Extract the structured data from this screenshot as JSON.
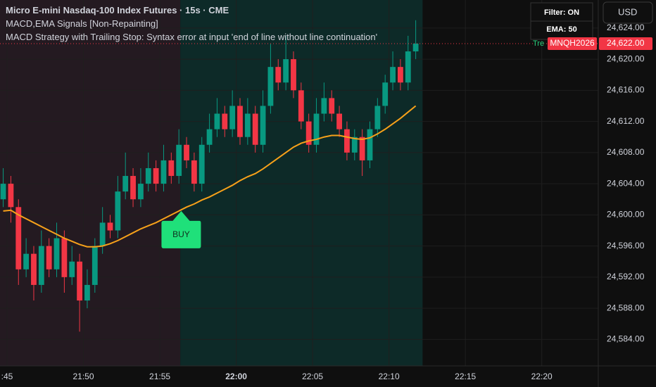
{
  "chart_data": {
    "type": "candlestick",
    "title": "Micro E-mini Nasdaq-100 Index Futures · 15s · CME",
    "indicators": [
      "MACD,EMA Signals [Non-Repainting]",
      "MACD Strategy with Trailing Stop: Syntax error at input 'end of line without line continuation'"
    ],
    "table": [
      "Filter: ON",
      "EMA: 50"
    ],
    "currency": "USD",
    "trend_label": "Tre",
    "symbol": "MNQH2026",
    "last_price": {
      "value": 24622,
      "label": "24,622.00"
    },
    "x": [
      44.75,
      45.25,
      45.75,
      46.25,
      46.75,
      47.25,
      47.75,
      48.25,
      48.75,
      49.25,
      49.75,
      50.25,
      50.75,
      51.25,
      51.75,
      52.25,
      52.75,
      53.25,
      53.75,
      54.25,
      54.75,
      55.25,
      55.75,
      56.25,
      56.75,
      57.25,
      57.75,
      58.25,
      58.75,
      59.25,
      59.75,
      60.25,
      60.75,
      61.25,
      61.75,
      62.25,
      62.75,
      63.25,
      63.75,
      64.25,
      64.75,
      65.25,
      65.75,
      66.25,
      66.75,
      67.25,
      67.75,
      68.25,
      68.75,
      69.25,
      69.75,
      70.25,
      70.75,
      71.25,
      71.75
    ],
    "open": [
      24602,
      24604,
      24601,
      24593,
      24595,
      24591,
      24596,
      24593,
      24597,
      24592,
      24594,
      24589,
      24591,
      24596,
      24599,
      24598,
      24603,
      24605,
      24602,
      24604,
      24606,
      24604,
      24607,
      24605,
      24609,
      24607,
      24604,
      24609,
      24611,
      24613,
      24611,
      24614,
      24610,
      24613,
      24609,
      24614,
      24619,
      24617,
      24620,
      24616,
      24612,
      24609,
      24613,
      24615,
      24613,
      24611,
      24608,
      24610,
      24607,
      24611,
      24614,
      24617,
      24619,
      24617,
      24621
    ],
    "high": [
      24606,
      24605,
      24602,
      24597,
      24596,
      24598,
      24597,
      24599,
      24598,
      24596,
      24595,
      24593,
      24597,
      24601,
      24600,
      24605,
      24608,
      24606,
      24606,
      24608,
      24607,
      24609,
      24608,
      24611,
      24610,
      24608,
      24610,
      24613,
      24615,
      24614,
      24616,
      24615,
      24615,
      24614,
      24616,
      24622,
      24620,
      24623,
      24621,
      24617,
      24613,
      24615,
      24617,
      24616,
      24614,
      24612,
      24611,
      24611,
      24612,
      24615,
      24618,
      24621,
      24620,
      24623,
      24625
    ],
    "low": [
      24601,
      24599,
      24591,
      24592,
      24589,
      24590,
      24592,
      24592,
      24590,
      24591,
      24585,
      24588,
      24590,
      24595,
      24597,
      24597,
      24602,
      24601,
      24601,
      24603,
      24603,
      24603,
      24604,
      24604,
      24606,
      24603,
      24603,
      24608,
      24610,
      24610,
      24610,
      24609,
      24609,
      24608,
      24608,
      24613,
      24616,
      24616,
      24615,
      24611,
      24608,
      24608,
      24612,
      24612,
      24610,
      24607,
      24607,
      24605,
      24606,
      24610,
      24613,
      24616,
      24616,
      24616,
      24620
    ],
    "close": [
      24604,
      24601,
      24593,
      24595,
      24591,
      24596,
      24593,
      24597,
      24592,
      24594,
      24589,
      24591,
      24596,
      24599,
      24598,
      24603,
      24605,
      24602,
      24604,
      24606,
      24604,
      24607,
      24605,
      24609,
      24607,
      24604,
      24609,
      24611,
      24613,
      24611,
      24614,
      24610,
      24613,
      24609,
      24614,
      24619,
      24617,
      24620,
      24616,
      24612,
      24609,
      24613,
      24615,
      24613,
      24611,
      24608,
      24610,
      24607,
      24611,
      24614,
      24617,
      24619,
      24617,
      24621,
      24622
    ],
    "up_color": "#089981",
    "down_color": "#f23645",
    "ema": {
      "color": "#f7a11a",
      "values": [
        24600.5,
        24600.6,
        24600.0,
        24599.5,
        24599.0,
        24598.5,
        24598.0,
        24597.5,
        24597.0,
        24596.6,
        24596.2,
        24595.9,
        24595.9,
        24596.0,
        24596.3,
        24596.7,
        24597.2,
        24597.7,
        24598.2,
        24598.6,
        24599.0,
        24599.5,
        24600.0,
        24600.5,
        24601.0,
        24601.4,
        24601.9,
        24602.3,
        24602.8,
        24603.3,
        24603.8,
        24604.4,
        24604.9,
        24605.3,
        24605.9,
        24606.6,
        24607.3,
        24608.0,
        24608.7,
        24609.2,
        24609.5,
        24609.7,
        24610.0,
        24610.2,
        24610.2,
        24610.0,
        24609.8,
        24609.7,
        24609.9,
        24610.4,
        24611.0,
        24611.7,
        24612.4,
        24613.2,
        24614.0
      ]
    },
    "regions": [
      {
        "from": 44.54,
        "to": 56.34,
        "color": "#241a21"
      },
      {
        "from": 56.34,
        "to": 72.2,
        "color": "#0d2a28"
      }
    ],
    "signal": {
      "text": "BUY",
      "x": 56.4,
      "y": 24600.5,
      "color": "#1fe07a"
    },
    "xlim": [
      44.54,
      83.7
    ],
    "ylim": [
      24580.6,
      24627.6
    ],
    "xticks": [
      {
        "value": 45,
        "label": ":45"
      },
      {
        "value": 50,
        "label": "21:50"
      },
      {
        "value": 55,
        "label": "21:55"
      },
      {
        "value": 60,
        "label": "22:00"
      },
      {
        "value": 65,
        "label": "22:05"
      },
      {
        "value": 70,
        "label": "22:10"
      },
      {
        "value": 75,
        "label": "22:15"
      },
      {
        "value": 80,
        "label": "22:20"
      }
    ],
    "yticks": [
      {
        "value": 24584,
        "label": "24,584.00"
      },
      {
        "value": 24588,
        "label": "24,588.00"
      },
      {
        "value": 24592,
        "label": "24,592.00"
      },
      {
        "value": 24596,
        "label": "24,596.00"
      },
      {
        "value": 24600,
        "label": "24,600.00"
      },
      {
        "value": 24604,
        "label": "24,604.00"
      },
      {
        "value": 24608,
        "label": "24,608.00"
      },
      {
        "value": 24612,
        "label": "24,612.00"
      },
      {
        "value": 24616,
        "label": "24,616.00"
      },
      {
        "value": 24620,
        "label": "24,620.00"
      },
      {
        "value": 24624,
        "label": "24,624.00"
      }
    ],
    "grid": true
  }
}
